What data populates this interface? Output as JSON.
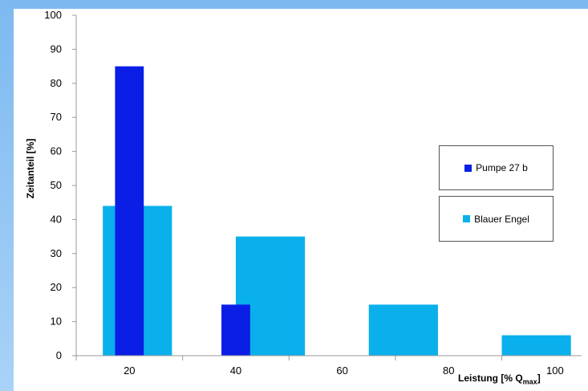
{
  "chart_data": {
    "type": "bar",
    "x_ticks": [
      "20",
      "40",
      "60",
      "80",
      "100"
    ],
    "y_ticks": [
      "0",
      "10",
      "20",
      "30",
      "40",
      "50",
      "60",
      "70",
      "80",
      "90",
      "100"
    ],
    "ylim": [
      0,
      100
    ],
    "ylabel": "Zeitanteil [%]",
    "xlabel_main": "Leistung [% Q",
    "xlabel_sub": "max",
    "xlabel_end": "]",
    "grid": false,
    "legend_placement": "right",
    "series": [
      {
        "name": "Pumpe 27 b",
        "color": "#0a1ee6",
        "points": [
          {
            "x": 20,
            "value": 85
          },
          {
            "x": 40,
            "value": 15
          }
        ]
      },
      {
        "name": "Blauer Engel",
        "color": "#0ab0ec",
        "points": [
          {
            "x": 20,
            "value": 44
          },
          {
            "x": 45,
            "value": 35
          },
          {
            "x": 70,
            "value": 15
          },
          {
            "x": 95,
            "value": 6
          }
        ]
      }
    ]
  }
}
